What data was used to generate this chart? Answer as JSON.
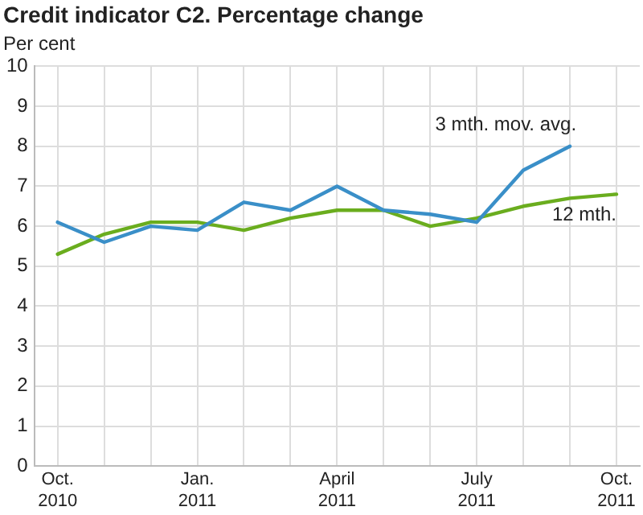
{
  "chart_data": {
    "type": "line",
    "title": "Credit indicator C2. Percentage change",
    "ylabel": "Per cent",
    "categories": [
      "Oct. 2010",
      null,
      null,
      "Jan. 2011",
      null,
      null,
      "April 2011",
      null,
      null,
      "July 2011",
      null,
      null,
      "Oct. 2011"
    ],
    "series": [
      {
        "name": "3 mth. mov. avg.",
        "color": "#3a8fc8",
        "values": [
          6.1,
          5.6,
          6.0,
          5.9,
          6.6,
          6.4,
          7.0,
          6.4,
          6.3,
          6.1,
          7.4,
          8.0,
          null
        ]
      },
      {
        "name": "12 mth.",
        "color": "#6aad1e",
        "values": [
          5.3,
          5.8,
          6.1,
          6.1,
          5.9,
          6.2,
          6.4,
          6.4,
          6.0,
          6.2,
          6.5,
          6.7,
          6.8
        ]
      }
    ],
    "ylim": [
      0,
      10
    ],
    "yticks": [
      0,
      1,
      2,
      3,
      4,
      5,
      6,
      7,
      8,
      9,
      10
    ],
    "grid": true,
    "legend": false,
    "marker": "none",
    "line_style": "solid"
  }
}
